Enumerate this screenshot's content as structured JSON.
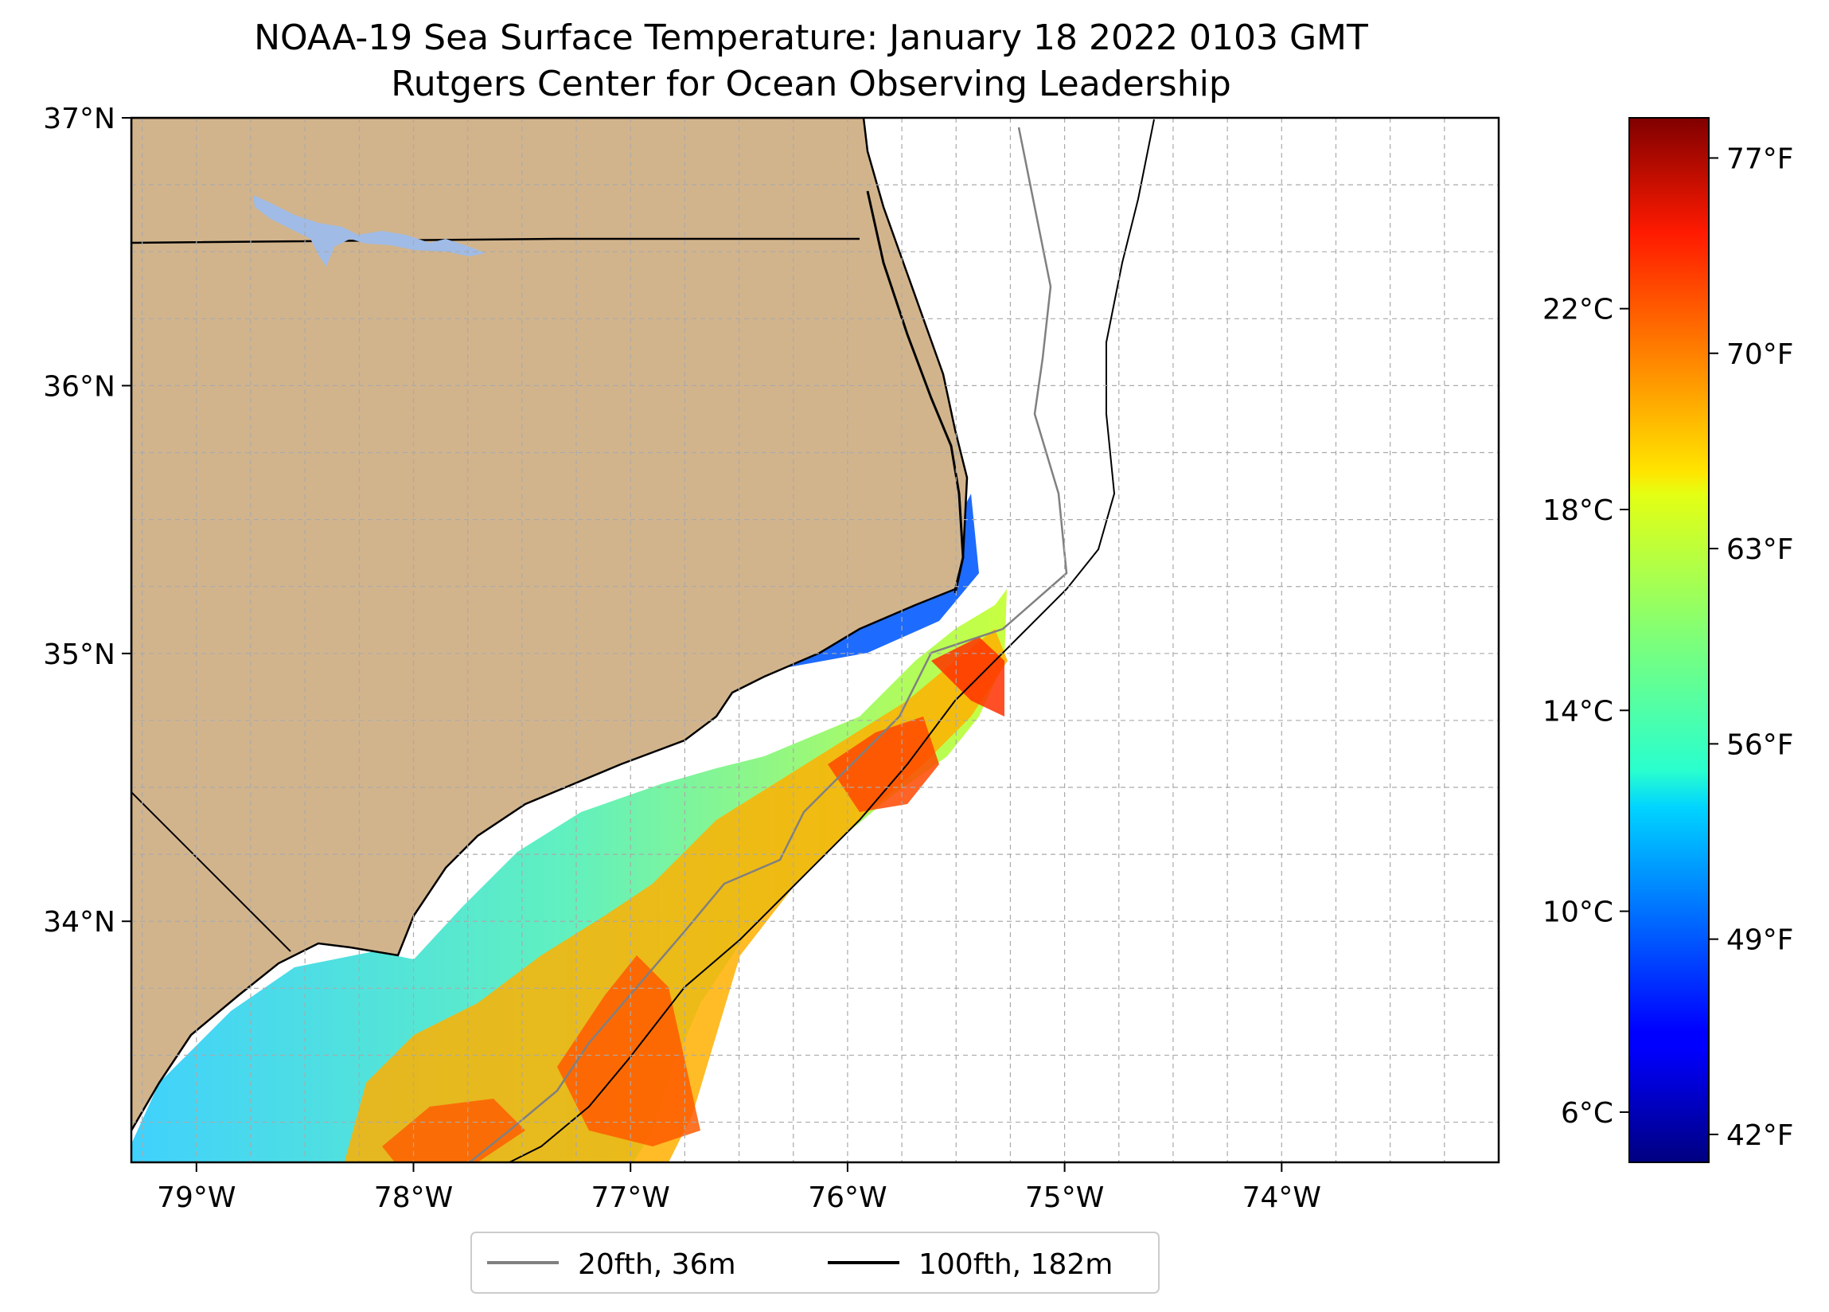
{
  "title": "NOAA-19 Sea Surface Temperature: January 18 2022 0103 GMT",
  "subtitle": "Rutgers Center for Ocean Observing Leadership",
  "map": {
    "lon_range": [
      -79.3,
      -73.0
    ],
    "lat_range": [
      33.1,
      37.0
    ],
    "lon_ticks": [
      {
        "value": -79,
        "label": "79°W"
      },
      {
        "value": -78,
        "label": "78°W"
      },
      {
        "value": -77,
        "label": "77°W"
      },
      {
        "value": -76,
        "label": "76°W"
      },
      {
        "value": -75,
        "label": "75°W"
      },
      {
        "value": -74,
        "label": "74°W"
      }
    ],
    "lat_ticks": [
      {
        "value": 37,
        "label": "37°N"
      },
      {
        "value": 36,
        "label": "36°N"
      },
      {
        "value": 35,
        "label": "35°N"
      },
      {
        "value": 34,
        "label": "34°N"
      }
    ],
    "grid": true,
    "land_color": "#d2b48c",
    "lake_color": "#9fbbe6"
  },
  "legend": {
    "placement": "bottom-center",
    "items": [
      {
        "label": "20fth, 36m",
        "color": "#808080"
      },
      {
        "label": "100fth, 182m",
        "color": "#000000"
      }
    ]
  },
  "colorbar": {
    "colormap": "jet",
    "celsius_range": [
      5.0,
      25.8
    ],
    "celsius_ticks": [
      {
        "value": 6,
        "label": "6°C"
      },
      {
        "value": 10,
        "label": "10°C"
      },
      {
        "value": 14,
        "label": "14°C"
      },
      {
        "value": 18,
        "label": "18°C"
      },
      {
        "value": 22,
        "label": "22°C"
      }
    ],
    "fahrenheit_ticks": [
      {
        "value": 42,
        "label": "42°F"
      },
      {
        "value": 49,
        "label": "49°F"
      },
      {
        "value": 56,
        "label": "56°F"
      },
      {
        "value": 63,
        "label": "63°F"
      },
      {
        "value": 70,
        "label": "70°F"
      },
      {
        "value": 77,
        "label": "77°F"
      }
    ]
  }
}
